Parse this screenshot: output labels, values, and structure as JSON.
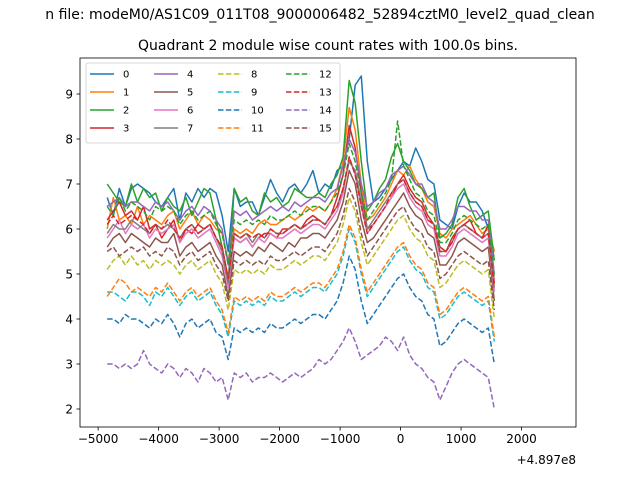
{
  "file_title": "n file: modeM0/AS1C09_011T08_9000006482_52894cztM0_level2_quad_clean",
  "chart_data": {
    "type": "line",
    "title": "Quadrant 2 module wise count rates with 100.0s bins.",
    "xlabel": "",
    "ylabel": "",
    "offset_label": "+4.897e8",
    "xlim": [
      -5300,
      2900
    ],
    "ylim": [
      1.6,
      9.8
    ],
    "xticks": [
      -5000,
      -4000,
      -3000,
      -2000,
      -1000,
      0,
      1000,
      2000
    ],
    "xtick_labels": [
      "−5000",
      "−4000",
      "−3000",
      "−2000",
      "−1000",
      "0",
      "1000",
      "2000"
    ],
    "yticks": [
      2,
      3,
      4,
      5,
      6,
      7,
      8,
      9
    ],
    "ytick_labels": [
      "2",
      "3",
      "4",
      "5",
      "6",
      "7",
      "8",
      "9"
    ],
    "x_start": -4850,
    "x_step": 100,
    "legend_loc": "upper left",
    "series": [
      {
        "name": "0",
        "color": "#1f77b4",
        "dash": "solid",
        "values": [
          6.7,
          6.3,
          6.9,
          6.5,
          6.9,
          7.0,
          6.9,
          6.8,
          6.6,
          6.5,
          6.7,
          6.9,
          6.2,
          6.8,
          6.6,
          6.9,
          6.7,
          6.9,
          6.8,
          6.3,
          5.5,
          6.9,
          6.5,
          6.6,
          6.6,
          6.3,
          6.7,
          7.1,
          6.8,
          6.6,
          6.9,
          7.0,
          6.8,
          7.0,
          7.3,
          6.8,
          7.0,
          6.9,
          7.3,
          7.4,
          8.0,
          9.2,
          9.4,
          7.5,
          6.6,
          6.7,
          6.9,
          7.1,
          7.3,
          7.5,
          7.4,
          7.8,
          7.5,
          7.1,
          7.0,
          6.2,
          6.1,
          6.0,
          6.5,
          6.8,
          6.6,
          6.6,
          6.4,
          6.0,
          5.5
        ]
      },
      {
        "name": "1",
        "color": "#ff7f0e",
        "dash": "solid",
        "values": [
          6.0,
          6.7,
          6.2,
          6.3,
          6.1,
          6.5,
          6.1,
          6.3,
          6.2,
          6.1,
          6.3,
          6.4,
          6.0,
          6.2,
          6.4,
          6.1,
          6.3,
          6.2,
          6.0,
          5.9,
          5.3,
          6.0,
          5.9,
          6.0,
          5.9,
          6.1,
          6.2,
          6.1,
          6.1,
          6.2,
          6.3,
          6.2,
          6.3,
          6.5,
          6.4,
          6.5,
          6.4,
          6.6,
          6.9,
          7.5,
          8.7,
          8.2,
          7.0,
          6.2,
          6.3,
          6.5,
          6.7,
          7.0,
          7.3,
          7.2,
          7.4,
          7.1,
          6.9,
          6.6,
          6.5,
          5.9,
          5.8,
          6.0,
          6.1,
          6.2,
          6.3,
          6.1,
          5.9,
          6.0,
          5.5
        ]
      },
      {
        "name": "2",
        "color": "#2ca02c",
        "dash": "solid",
        "values": [
          7.0,
          6.8,
          6.6,
          6.5,
          7.0,
          6.6,
          6.9,
          6.7,
          6.8,
          6.4,
          6.7,
          6.5,
          6.4,
          6.7,
          6.3,
          6.6,
          6.9,
          6.8,
          6.2,
          5.6,
          4.8,
          6.9,
          6.6,
          6.7,
          6.4,
          6.3,
          6.8,
          6.6,
          6.7,
          6.5,
          6.6,
          6.9,
          6.8,
          6.7,
          6.7,
          6.8,
          6.7,
          7.0,
          7.2,
          7.6,
          9.3,
          8.8,
          7.5,
          6.4,
          6.6,
          6.9,
          7.1,
          7.6,
          7.9,
          7.5,
          7.3,
          7.0,
          6.9,
          6.7,
          6.8,
          5.8,
          5.9,
          6.1,
          6.7,
          6.9,
          6.5,
          6.2,
          6.3,
          6.4,
          5.3
        ]
      },
      {
        "name": "3",
        "color": "#d62728",
        "dash": "solid",
        "values": [
          6.2,
          6.4,
          6.6,
          6.3,
          6.4,
          6.2,
          6.5,
          6.0,
          6.1,
          5.8,
          6.0,
          6.2,
          5.7,
          6.0,
          5.9,
          6.1,
          6.0,
          6.1,
          5.8,
          5.6,
          4.9,
          5.8,
          5.7,
          5.8,
          5.6,
          5.8,
          5.9,
          5.9,
          5.8,
          6.0,
          6.0,
          6.1,
          6.0,
          6.2,
          6.3,
          6.2,
          6.1,
          6.3,
          6.7,
          7.2,
          8.3,
          7.8,
          6.8,
          6.0,
          6.1,
          6.3,
          6.5,
          6.7,
          7.0,
          7.2,
          6.9,
          6.7,
          6.6,
          6.3,
          6.1,
          5.6,
          5.5,
          5.8,
          6.0,
          6.1,
          6.2,
          5.9,
          5.8,
          6.1,
          4.8
        ]
      },
      {
        "name": "4",
        "color": "#9467bd",
        "dash": "solid",
        "values": [
          6.5,
          6.6,
          6.7,
          6.5,
          6.6,
          6.6,
          6.5,
          6.4,
          6.6,
          6.5,
          6.6,
          6.4,
          6.2,
          6.4,
          6.5,
          6.3,
          6.5,
          6.4,
          6.2,
          6.0,
          5.2,
          6.4,
          6.3,
          6.4,
          6.2,
          6.3,
          6.4,
          6.5,
          6.4,
          6.5,
          6.4,
          6.6,
          6.5,
          6.6,
          6.7,
          6.7,
          6.6,
          6.8,
          6.9,
          7.4,
          8.0,
          7.7,
          7.0,
          6.5,
          6.6,
          6.8,
          6.9,
          7.2,
          7.3,
          7.4,
          7.2,
          7.0,
          7.0,
          6.7,
          6.6,
          6.0,
          6.0,
          6.2,
          6.5,
          6.5,
          6.4,
          6.4,
          6.2,
          6.2,
          5.0
        ]
      },
      {
        "name": "5",
        "color": "#8c564b",
        "dash": "solid",
        "values": [
          5.6,
          5.8,
          5.9,
          5.7,
          5.9,
          5.8,
          5.7,
          5.6,
          5.8,
          5.7,
          5.7,
          5.9,
          5.4,
          5.6,
          5.7,
          5.5,
          5.6,
          5.7,
          5.4,
          5.2,
          4.5,
          5.5,
          5.4,
          5.5,
          5.4,
          5.6,
          5.5,
          5.7,
          5.6,
          5.5,
          5.7,
          5.6,
          5.8,
          5.8,
          5.9,
          5.9,
          5.8,
          6.0,
          6.2,
          6.6,
          7.3,
          7.0,
          6.2,
          5.7,
          5.8,
          6.0,
          6.2,
          6.4,
          6.6,
          6.8,
          6.5,
          6.3,
          6.2,
          5.9,
          5.8,
          5.2,
          5.2,
          5.4,
          5.7,
          5.8,
          5.7,
          5.6,
          5.5,
          5.6,
          4.4
        ]
      },
      {
        "name": "6",
        "color": "#e377c2",
        "dash": "solid",
        "values": [
          5.8,
          6.0,
          6.2,
          5.9,
          6.1,
          6.0,
          6.1,
          5.8,
          6.0,
          5.9,
          6.0,
          6.1,
          5.7,
          5.9,
          6.0,
          5.8,
          5.9,
          6.0,
          5.7,
          5.4,
          4.7,
          5.8,
          5.7,
          5.8,
          5.6,
          5.8,
          5.7,
          5.9,
          5.8,
          5.8,
          5.9,
          6.0,
          5.9,
          6.0,
          6.1,
          6.1,
          6.0,
          6.2,
          6.4,
          6.8,
          7.6,
          7.2,
          6.5,
          5.9,
          6.1,
          6.3,
          6.5,
          6.7,
          6.9,
          7.0,
          6.7,
          6.5,
          6.4,
          6.1,
          6.0,
          5.4,
          5.4,
          5.6,
          5.9,
          6.0,
          5.9,
          5.8,
          5.7,
          5.8,
          4.6
        ]
      },
      {
        "name": "7",
        "color": "#7f7f7f",
        "dash": "solid",
        "values": [
          5.9,
          6.1,
          6.0,
          6.0,
          6.2,
          6.1,
          6.0,
          5.9,
          6.1,
          6.0,
          6.1,
          6.0,
          5.8,
          6.0,
          6.1,
          5.9,
          6.0,
          6.1,
          5.8,
          5.5,
          4.8,
          5.9,
          5.8,
          5.9,
          5.7,
          5.9,
          5.8,
          6.0,
          5.9,
          5.9,
          6.0,
          6.1,
          6.0,
          6.1,
          6.2,
          6.2,
          6.1,
          6.3,
          6.5,
          6.9,
          7.5,
          7.3,
          6.6,
          6.0,
          6.2,
          6.4,
          6.6,
          6.8,
          7.0,
          7.1,
          6.8,
          6.6,
          6.5,
          6.2,
          6.1,
          5.5,
          5.5,
          5.7,
          6.0,
          6.1,
          6.0,
          5.9,
          5.8,
          5.9,
          4.7
        ]
      },
      {
        "name": "8",
        "color": "#bcbd22",
        "dash": "dashed",
        "values": [
          5.1,
          5.3,
          5.4,
          5.2,
          5.4,
          5.2,
          5.3,
          5.1,
          5.3,
          5.2,
          5.3,
          5.2,
          5.0,
          5.2,
          5.3,
          5.1,
          5.2,
          5.3,
          5.0,
          4.8,
          4.2,
          5.1,
          5.0,
          5.1,
          5.0,
          5.1,
          5.0,
          5.2,
          5.1,
          5.1,
          5.2,
          5.3,
          5.2,
          5.3,
          5.4,
          5.4,
          5.3,
          5.5,
          5.7,
          6.1,
          6.7,
          6.4,
          5.7,
          5.2,
          5.4,
          5.6,
          5.8,
          6.0,
          6.2,
          6.3,
          6.0,
          5.8,
          5.7,
          5.4,
          5.3,
          4.7,
          4.8,
          5.0,
          5.2,
          5.3,
          5.2,
          5.1,
          5.0,
          5.1,
          4.0
        ]
      },
      {
        "name": "9",
        "color": "#17becf",
        "dash": "dashed",
        "values": [
          4.6,
          4.6,
          4.5,
          4.4,
          4.6,
          4.6,
          4.5,
          4.3,
          4.6,
          4.5,
          4.7,
          4.5,
          4.3,
          4.5,
          4.6,
          4.4,
          4.5,
          4.6,
          4.3,
          4.1,
          3.6,
          4.4,
          4.3,
          4.4,
          4.3,
          4.4,
          4.3,
          4.5,
          4.4,
          4.4,
          4.5,
          4.6,
          4.5,
          4.6,
          4.7,
          4.7,
          4.6,
          4.8,
          5.0,
          5.4,
          6.0,
          5.7,
          5.0,
          4.5,
          4.7,
          4.9,
          5.1,
          5.3,
          5.5,
          5.6,
          5.3,
          5.1,
          5.0,
          4.7,
          4.6,
          4.0,
          4.1,
          4.3,
          4.5,
          4.6,
          4.5,
          4.4,
          4.3,
          4.4,
          3.5
        ]
      },
      {
        "name": "10",
        "color": "#1f77b4",
        "dash": "dashed",
        "values": [
          4.0,
          4.0,
          3.9,
          4.1,
          4.0,
          4.0,
          3.9,
          3.8,
          4.0,
          3.9,
          4.1,
          3.9,
          3.6,
          3.9,
          4.0,
          3.8,
          3.9,
          4.0,
          3.7,
          3.6,
          3.1,
          3.8,
          3.7,
          3.8,
          3.7,
          3.8,
          3.7,
          3.9,
          3.8,
          3.8,
          3.9,
          4.0,
          3.9,
          4.0,
          4.1,
          4.1,
          4.0,
          4.2,
          4.4,
          4.8,
          5.4,
          5.1,
          4.4,
          3.9,
          4.1,
          4.3,
          4.5,
          4.7,
          4.9,
          5.0,
          4.7,
          4.5,
          4.4,
          4.1,
          4.0,
          3.4,
          3.5,
          3.7,
          3.9,
          4.0,
          3.9,
          3.8,
          3.7,
          3.8,
          3.0
        ]
      },
      {
        "name": "11",
        "color": "#ff7f0e",
        "dash": "dashed",
        "values": [
          4.5,
          4.7,
          4.9,
          4.8,
          4.6,
          4.7,
          4.6,
          4.5,
          4.7,
          4.6,
          4.8,
          4.6,
          4.4,
          4.6,
          4.7,
          4.5,
          4.6,
          4.7,
          4.4,
          4.2,
          3.7,
          4.5,
          4.4,
          4.5,
          4.4,
          4.5,
          4.4,
          4.6,
          4.5,
          4.5,
          4.6,
          4.7,
          4.6,
          4.7,
          4.8,
          4.8,
          4.7,
          4.9,
          5.1,
          5.5,
          6.1,
          5.8,
          5.1,
          4.6,
          4.8,
          5.0,
          5.2,
          5.4,
          5.6,
          5.7,
          5.4,
          5.2,
          5.1,
          4.8,
          4.7,
          4.1,
          4.2,
          4.4,
          4.6,
          4.7,
          4.6,
          4.5,
          4.4,
          4.5,
          3.6
        ]
      },
      {
        "name": "12",
        "color": "#2ca02c",
        "dash": "dashed",
        "values": [
          6.5,
          6.3,
          6.7,
          6.4,
          6.6,
          6.5,
          6.4,
          6.2,
          6.5,
          6.4,
          6.5,
          6.4,
          6.1,
          6.3,
          6.4,
          6.2,
          6.3,
          6.4,
          6.1,
          5.9,
          5.2,
          6.2,
          6.1,
          6.2,
          6.1,
          6.2,
          6.1,
          6.3,
          6.2,
          6.2,
          6.3,
          6.4,
          6.3,
          6.4,
          6.5,
          6.5,
          6.4,
          6.6,
          6.8,
          7.2,
          7.9,
          7.5,
          6.8,
          6.2,
          6.4,
          6.6,
          6.8,
          7.1,
          8.4,
          7.4,
          7.1,
          6.8,
          6.7,
          6.4,
          6.3,
          5.7,
          5.7,
          5.9,
          6.2,
          6.3,
          6.2,
          6.1,
          6.0,
          6.1,
          4.9
        ]
      },
      {
        "name": "13",
        "color": "#d62728",
        "dash": "dashed",
        "values": [
          6.1,
          6.3,
          6.1,
          6.2,
          6.3,
          6.2,
          6.1,
          5.9,
          6.1,
          6.0,
          6.2,
          6.0,
          5.8,
          6.0,
          6.1,
          5.9,
          6.0,
          6.1,
          5.8,
          5.6,
          4.9,
          5.9,
          5.8,
          5.9,
          5.8,
          5.9,
          5.8,
          6.0,
          5.9,
          5.9,
          6.0,
          6.1,
          6.0,
          6.1,
          6.2,
          6.2,
          6.1,
          6.3,
          6.5,
          6.9,
          7.6,
          7.2,
          6.5,
          5.9,
          6.1,
          6.3,
          6.5,
          6.8,
          7.0,
          7.1,
          6.8,
          6.6,
          6.5,
          6.2,
          6.1,
          5.5,
          5.5,
          5.7,
          6.0,
          6.1,
          6.0,
          5.9,
          5.8,
          5.9,
          4.7
        ]
      },
      {
        "name": "14",
        "color": "#9467bd",
        "dash": "dashed",
        "values": [
          3.0,
          3.0,
          2.9,
          3.0,
          2.9,
          3.0,
          3.3,
          3.0,
          2.9,
          2.8,
          3.0,
          2.9,
          2.7,
          2.9,
          2.8,
          2.6,
          2.9,
          2.8,
          2.6,
          2.7,
          2.2,
          2.8,
          2.7,
          2.8,
          2.6,
          2.7,
          2.7,
          2.8,
          2.7,
          2.6,
          2.7,
          2.8,
          2.7,
          2.8,
          2.9,
          3.1,
          3.0,
          3.1,
          3.3,
          3.5,
          3.8,
          3.5,
          3.1,
          3.2,
          3.3,
          3.4,
          3.6,
          3.5,
          3.3,
          3.6,
          3.2,
          3.0,
          2.9,
          2.7,
          2.6,
          2.2,
          2.5,
          2.8,
          3.0,
          3.1,
          3.0,
          2.9,
          2.8,
          2.7,
          2.0
        ]
      },
      {
        "name": "15",
        "color": "#8c564b",
        "dash": "dashed",
        "values": [
          5.5,
          5.6,
          5.4,
          5.5,
          5.6,
          5.5,
          5.6,
          5.4,
          5.5,
          5.4,
          5.6,
          5.5,
          5.2,
          5.4,
          5.5,
          5.3,
          5.4,
          5.5,
          5.2,
          5.0,
          4.4,
          5.3,
          5.2,
          5.3,
          5.2,
          5.3,
          5.2,
          5.4,
          5.3,
          5.3,
          5.4,
          5.5,
          5.4,
          5.5,
          5.6,
          5.6,
          5.5,
          5.7,
          5.9,
          6.3,
          6.9,
          6.6,
          5.9,
          5.4,
          5.6,
          5.8,
          6.0,
          6.2,
          6.4,
          6.5,
          6.2,
          6.0,
          5.9,
          5.6,
          5.5,
          4.9,
          5.0,
          5.2,
          5.4,
          5.5,
          5.4,
          5.3,
          5.2,
          5.3,
          4.2
        ]
      }
    ]
  }
}
